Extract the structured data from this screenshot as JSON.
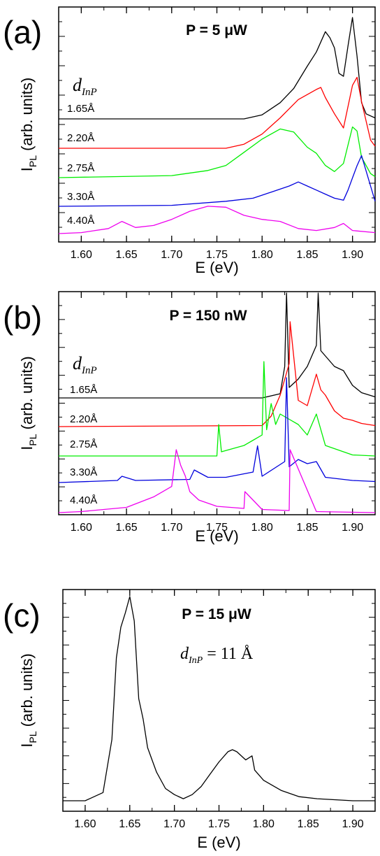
{
  "chart_data": [
    {
      "panel": "(a)",
      "type": "line",
      "title": "P = 5 μW",
      "xlabel": "E (eV)",
      "ylabel_main": "I",
      "ylabel_sub": "PL",
      "ylabel_rest": " (arb. units)",
      "xlim": [
        1.575,
        1.925
      ],
      "xticks": [
        "1.60",
        "1.65",
        "1.70",
        "1.75",
        "1.80",
        "1.85",
        "1.90"
      ],
      "legend_title_main": "d",
      "legend_title_sub": "InP",
      "series": [
        {
          "name": "1.65Å",
          "color": "#000000",
          "x": [
            1.575,
            1.78,
            1.8,
            1.82,
            1.835,
            1.85,
            1.86,
            1.87,
            1.875,
            1.88,
            1.885,
            1.89,
            1.895,
            1.9,
            1.905,
            1.91,
            1.915,
            1.925
          ],
          "y": [
            0,
            0,
            0.04,
            0.16,
            0.3,
            0.52,
            0.66,
            0.86,
            0.8,
            0.7,
            0.45,
            0.42,
            0.72,
            1.0,
            0.62,
            0.16,
            0.05,
            0.01
          ]
        },
        {
          "name": "2.20Å",
          "color": "#ff0000",
          "x": [
            1.575,
            1.76,
            1.78,
            1.8,
            1.82,
            1.84,
            1.86,
            1.865,
            1.87,
            1.88,
            1.89,
            1.9,
            1.905,
            1.91,
            1.92,
            1.925
          ],
          "y": [
            0,
            0,
            0.04,
            0.14,
            0.3,
            0.48,
            0.58,
            0.6,
            0.5,
            0.34,
            0.2,
            0.62,
            0.7,
            0.46,
            0.08,
            0.02
          ]
        },
        {
          "name": "2.75Å",
          "color": "#00ee00",
          "x": [
            1.575,
            1.7,
            1.74,
            1.76,
            1.78,
            1.8,
            1.82,
            1.835,
            1.85,
            1.86,
            1.87,
            1.88,
            1.89,
            1.9,
            1.905,
            1.91,
            1.92,
            1.925
          ],
          "y": [
            0,
            0.02,
            0.07,
            0.12,
            0.25,
            0.38,
            0.48,
            0.45,
            0.3,
            0.24,
            0.12,
            0.06,
            0.14,
            0.5,
            0.46,
            0.2,
            0.04,
            0.01
          ]
        },
        {
          "name": "3.30Å",
          "color": "#0000dd",
          "x": [
            1.575,
            1.7,
            1.76,
            1.79,
            1.81,
            1.83,
            1.84,
            1.85,
            1.86,
            1.87,
            1.88,
            1.89,
            1.895,
            1.9,
            1.905,
            1.91,
            1.92,
            1.925
          ],
          "y": [
            0,
            0.01,
            0.05,
            0.08,
            0.14,
            0.2,
            0.24,
            0.2,
            0.16,
            0.12,
            0.08,
            0.06,
            0.16,
            0.28,
            0.4,
            0.5,
            0.2,
            0.05
          ]
        },
        {
          "name": "4.40Å",
          "color": "#ee00ee",
          "x": [
            1.575,
            1.6,
            1.63,
            1.645,
            1.66,
            1.68,
            1.7,
            1.72,
            1.74,
            1.76,
            1.78,
            1.8,
            1.82,
            1.84,
            1.86,
            1.88,
            1.89,
            1.9,
            1.925
          ],
          "y": [
            0,
            0.01,
            0.05,
            0.12,
            0.06,
            0.08,
            0.14,
            0.22,
            0.27,
            0.26,
            0.18,
            0.14,
            0.12,
            0.05,
            0.03,
            0.06,
            0.1,
            0.03,
            0.01
          ]
        }
      ]
    },
    {
      "panel": "(b)",
      "type": "line",
      "title": "P = 150 nW",
      "xlabel": "E (eV)",
      "ylabel_main": "I",
      "ylabel_sub": "PL",
      "ylabel_rest": " (arb. units)",
      "xlim": [
        1.575,
        1.925
      ],
      "xticks": [
        "1.60",
        "1.65",
        "1.70",
        "1.75",
        "1.80",
        "1.85",
        "1.90"
      ],
      "legend_title_main": "d",
      "legend_title_sub": "InP",
      "series": [
        {
          "name": "1.65Å",
          "color": "#000000",
          "x": [
            1.575,
            1.8,
            1.82,
            1.825,
            1.827,
            1.83,
            1.84,
            1.85,
            1.86,
            1.862,
            1.865,
            1.87,
            1.88,
            1.89,
            1.9,
            1.91,
            1.925
          ],
          "y": [
            0,
            0,
            0.04,
            0.3,
            1.0,
            0.1,
            0.18,
            0.3,
            0.5,
            1.0,
            0.45,
            0.4,
            0.3,
            0.26,
            0.12,
            0.05,
            0.01
          ]
        },
        {
          "name": "2.20Å",
          "color": "#ff0000",
          "x": [
            1.575,
            1.8,
            1.81,
            1.82,
            1.83,
            1.831,
            1.84,
            1.85,
            1.86,
            1.865,
            1.87,
            1.88,
            1.89,
            1.9,
            1.91,
            1.925
          ],
          "y": [
            0,
            0.01,
            0.1,
            0.3,
            0.6,
            1.0,
            0.25,
            0.2,
            0.5,
            0.35,
            0.3,
            0.15,
            0.08,
            0.06,
            0.03,
            0.01
          ]
        },
        {
          "name": "2.75Å",
          "color": "#00ee00",
          "x": [
            1.575,
            1.75,
            1.752,
            1.755,
            1.78,
            1.79,
            1.8,
            1.802,
            1.805,
            1.81,
            1.815,
            1.82,
            1.83,
            1.84,
            1.85,
            1.86,
            1.87,
            1.9,
            1.925
          ],
          "y": [
            0,
            0,
            0.3,
            0.04,
            0.1,
            0.15,
            0.2,
            0.9,
            0.25,
            0.5,
            0.3,
            0.4,
            0.35,
            0.3,
            0.2,
            0.4,
            0.1,
            0.01,
            0
          ]
        },
        {
          "name": "3.30Å",
          "color": "#0000dd",
          "x": [
            1.575,
            1.64,
            1.645,
            1.66,
            1.72,
            1.725,
            1.74,
            1.76,
            1.79,
            1.795,
            1.8,
            1.825,
            1.827,
            1.83,
            1.84,
            1.85,
            1.86,
            1.87,
            1.9,
            1.925
          ],
          "y": [
            0,
            0.02,
            0.06,
            0.02,
            0.03,
            0.12,
            0.05,
            0.05,
            0.1,
            0.35,
            0.06,
            0.2,
            1.0,
            0.15,
            0.22,
            0.18,
            0.2,
            0.05,
            0.02,
            0.01
          ]
        },
        {
          "name": "4.40Å",
          "color": "#ee00ee",
          "x": [
            1.575,
            1.6,
            1.65,
            1.68,
            1.7,
            1.705,
            1.71,
            1.715,
            1.72,
            1.73,
            1.75,
            1.78,
            1.781,
            1.8,
            1.83,
            1.831,
            1.86,
            1.925
          ],
          "y": [
            0,
            0.01,
            0.05,
            0.15,
            0.25,
            0.6,
            0.45,
            0.35,
            0.2,
            0.12,
            0.06,
            0.04,
            0.2,
            0.03,
            0.02,
            0.6,
            0.01,
            0
          ]
        }
      ]
    },
    {
      "panel": "(c)",
      "type": "line",
      "title": "P = 15 μW",
      "xlabel": "E (eV)",
      "ylabel_main": "I",
      "ylabel_sub": "PL",
      "ylabel_rest": " (arb. units)",
      "xlim": [
        1.575,
        1.925
      ],
      "xticks": [
        "1.60",
        "1.65",
        "1.70",
        "1.75",
        "1.80",
        "1.85",
        "1.90"
      ],
      "annotation_main": "d",
      "annotation_sub": "InP",
      "annotation_rest": " = 11 Å",
      "series": [
        {
          "name": "",
          "color": "#000000",
          "x": [
            1.575,
            1.6,
            1.62,
            1.63,
            1.635,
            1.64,
            1.645,
            1.65,
            1.655,
            1.66,
            1.665,
            1.67,
            1.68,
            1.69,
            1.7,
            1.71,
            1.72,
            1.73,
            1.74,
            1.75,
            1.76,
            1.765,
            1.77,
            1.78,
            1.787,
            1.79,
            1.8,
            1.82,
            1.84,
            1.86,
            1.9,
            1.925
          ],
          "y": [
            0,
            0,
            0.04,
            0.3,
            0.7,
            0.85,
            0.92,
            1.0,
            0.88,
            0.5,
            0.4,
            0.26,
            0.14,
            0.06,
            0.03,
            0.01,
            0.03,
            0.07,
            0.13,
            0.19,
            0.24,
            0.25,
            0.24,
            0.2,
            0.22,
            0.15,
            0.1,
            0.05,
            0.02,
            0.01,
            0,
            0
          ]
        }
      ]
    }
  ]
}
